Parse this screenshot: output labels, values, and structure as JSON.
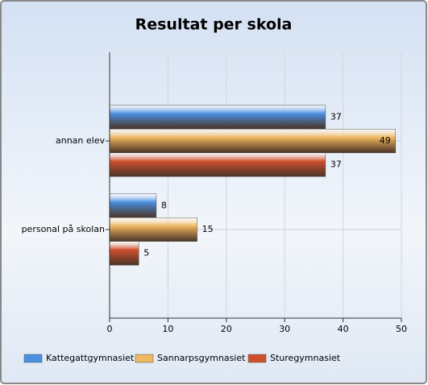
{
  "chart_data": {
    "type": "hbar",
    "title": "Resultat per skola",
    "categories": [
      "annan elev",
      "personal på skolan"
    ],
    "series": [
      {
        "name": "Kattegattgymnasiet",
        "color": "#4a8fe0",
        "values": [
          37,
          8
        ]
      },
      {
        "name": "Sannarpsgymnasiet",
        "color": "#f0b860",
        "values": [
          49,
          15
        ]
      },
      {
        "name": "Sturegymnasiet",
        "color": "#d0502e",
        "values": [
          37,
          5
        ]
      }
    ],
    "xlim": [
      0,
      50
    ],
    "xticks": [
      0,
      10,
      20,
      30,
      40,
      50
    ],
    "grid": true,
    "legend": "bottom"
  }
}
